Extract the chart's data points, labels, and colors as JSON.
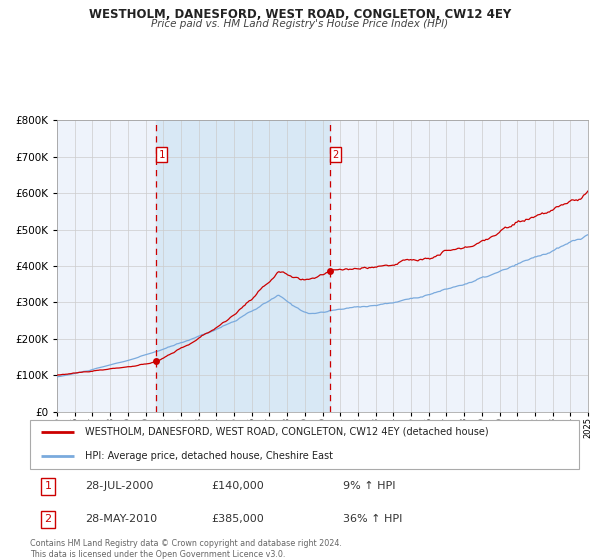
{
  "title": "WESTHOLM, DANESFORD, WEST ROAD, CONGLETON, CW12 4EY",
  "subtitle": "Price paid vs. HM Land Registry's House Price Index (HPI)",
  "red_line_label": "WESTHOLM, DANESFORD, WEST ROAD, CONGLETON, CW12 4EY (detached house)",
  "blue_line_label": "HPI: Average price, detached house, Cheshire East",
  "marker1_date": "28-JUL-2000",
  "marker1_price": 140000,
  "marker1_hpi": "9% ↑ HPI",
  "marker1_x": 2000.57,
  "marker2_date": "28-MAY-2010",
  "marker2_price": 385000,
  "marker2_hpi": "36% ↑ HPI",
  "marker2_x": 2010.41,
  "ylim": [
    0,
    800000
  ],
  "xlim_start": 1995,
  "xlim_end": 2025,
  "background_color": "#ffffff",
  "plot_bg_color": "#eef3fb",
  "shaded_region_color": "#d8e8f5",
  "grid_color": "#cccccc",
  "red_line_color": "#cc0000",
  "blue_line_color": "#7aaadd",
  "dashed_line_color": "#cc0000",
  "footnote": "Contains HM Land Registry data © Crown copyright and database right 2024.\nThis data is licensed under the Open Government Licence v3.0."
}
